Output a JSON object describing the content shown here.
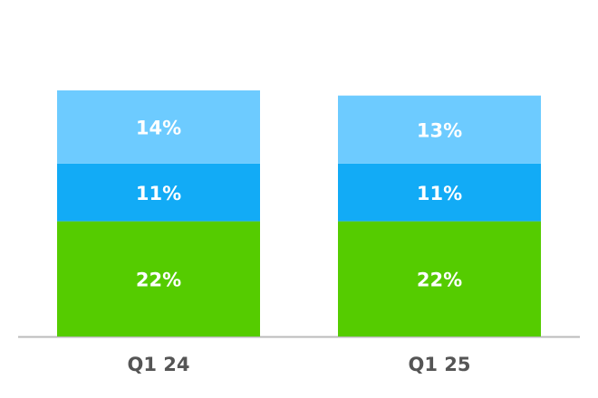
{
  "chart_data": {
    "type": "stacked-bar",
    "categories": [
      "Q1 24",
      "Q1 25"
    ],
    "series": [
      {
        "color": "#55cc00",
        "values": [
          22,
          22
        ],
        "value_labels": [
          "22%",
          "22%"
        ]
      },
      {
        "color": "#12abf6",
        "values": [
          11,
          11
        ],
        "value_labels": [
          "11%",
          "11%"
        ]
      },
      {
        "color": "#6dcbff",
        "values": [
          14,
          13
        ],
        "value_labels": [
          "14%",
          "13%"
        ]
      }
    ]
  }
}
